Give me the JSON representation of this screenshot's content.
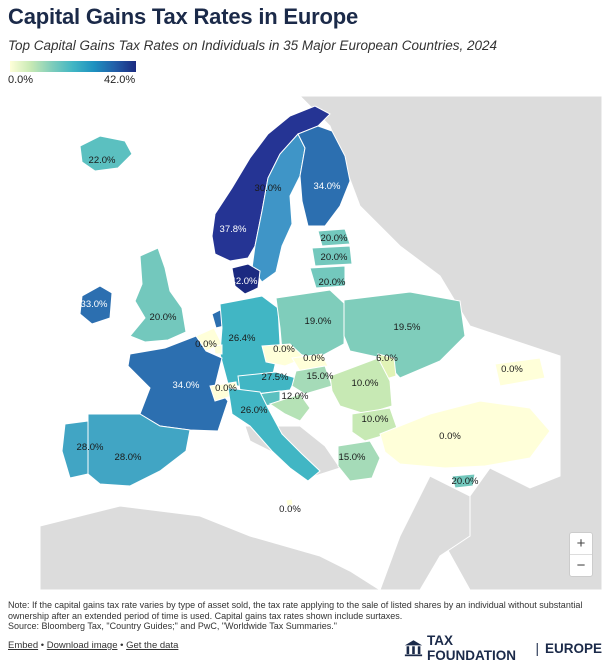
{
  "title": "Capital Gains Tax Rates in Europe",
  "subtitle": "Top Capital Gains Tax Rates on Individuals in 35 Major European Countries, 2024",
  "legend": {
    "min_label": "0.0%",
    "max_label": "42.0%",
    "colors": [
      "#ffffd9",
      "#1b2a80"
    ]
  },
  "colors": {
    "land_no_data": "#dcdcdc",
    "sea": "#ffffff",
    "border": "#ffffff"
  },
  "map_data": {
    "regions": [
      {
        "country": "Iceland",
        "label": "22.0%",
        "color": "#5bc0c0"
      },
      {
        "country": "Norway",
        "label": "37.8%",
        "color": "#253494"
      },
      {
        "country": "Sweden",
        "label": "30.0%",
        "color": "#3f95c7"
      },
      {
        "country": "Finland",
        "label": "34.0%",
        "color": "#2c6fb0"
      },
      {
        "country": "Denmark",
        "label": "42.0%",
        "color": "#1b2a80"
      },
      {
        "country": "Estonia",
        "label": "20.0%",
        "color": "#73c8bd"
      },
      {
        "country": "Latvia",
        "label": "20.0%",
        "color": "#73c8bd"
      },
      {
        "country": "Lithuania",
        "label": "20.0%",
        "color": "#73c8bd"
      },
      {
        "country": "Ireland",
        "label": "33.0%",
        "color": "#2c6fb0"
      },
      {
        "country": "United Kingdom",
        "label": "20.0%",
        "color": "#73c8bd"
      },
      {
        "country": "Netherlands",
        "label": "",
        "color": "#2c6fb0"
      },
      {
        "country": "Belgium",
        "label": "0.0%",
        "color": "#ffffd9"
      },
      {
        "country": "Germany",
        "label": "26.4%",
        "color": "#41b6c4"
      },
      {
        "country": "Poland",
        "label": "19.0%",
        "color": "#7fcdbb"
      },
      {
        "country": "Czech Republic",
        "label": "0.0%",
        "color": "#ffffd9"
      },
      {
        "country": "Slovakia",
        "label": "0.0%",
        "color": "#ffffd9"
      },
      {
        "country": "Ukraine",
        "label": "19.5%",
        "color": "#7fcdbb"
      },
      {
        "country": "France",
        "label": "34.0%",
        "color": "#2c6fb0"
      },
      {
        "country": "Switzerland",
        "label": "0.0%",
        "color": "#ffffd9"
      },
      {
        "country": "Austria",
        "label": "27.5%",
        "color": "#41b6c4"
      },
      {
        "country": "Hungary",
        "label": "15.0%",
        "color": "#a5dbb8"
      },
      {
        "country": "Moldova",
        "label": "6.0%",
        "color": "#e2f3b6"
      },
      {
        "country": "Romania",
        "label": "10.0%",
        "color": "#c7e9b4"
      },
      {
        "country": "Slovenia",
        "label": "",
        "color": "#5bc0c0"
      },
      {
        "country": "Croatia",
        "label": "12.0%",
        "color": "#b5e2b6"
      },
      {
        "country": "Italy",
        "label": "26.0%",
        "color": "#41b6c4"
      },
      {
        "country": "Bulgaria",
        "label": "10.0%",
        "color": "#c7e9b4"
      },
      {
        "country": "Greece",
        "label": "15.0%",
        "color": "#a5dbb8"
      },
      {
        "country": "Turkey",
        "label": "0.0%",
        "color": "#ffffd9"
      },
      {
        "country": "Georgia",
        "label": "0.0%",
        "color": "#ffffd9"
      },
      {
        "country": "Cyprus",
        "label": "20.0%",
        "color": "#73c8bd"
      },
      {
        "country": "Portugal",
        "label": "28.0%",
        "color": "#41a5c4"
      },
      {
        "country": "Spain",
        "label": "28.0%",
        "color": "#41a5c4"
      },
      {
        "country": "Malta",
        "label": "0.0%",
        "color": "#ffffd9"
      },
      {
        "country": "Luxembourg",
        "label": "",
        "color": "#ffffd9"
      }
    ]
  },
  "zoom": {
    "in_label": "+",
    "out_label": "−"
  },
  "note": "Note: If the capital gains tax rate varies by type of asset sold, the tax rate applying to the sale of listed shares by an individual without substantial ownership after an extended period of time is used. Capital gains tax rates shown include surtaxes.",
  "source": "Source: Bloomberg Tax, \"Country Guides;\" and PwC, \"Worldwide Tax Summaries.\"",
  "links": {
    "embed": "Embed",
    "download": "Download image",
    "data": "Get the data",
    "sep": "•"
  },
  "brand": {
    "name": "TAX FOUNDATION",
    "region": "EUROPE",
    "sep": "|"
  }
}
